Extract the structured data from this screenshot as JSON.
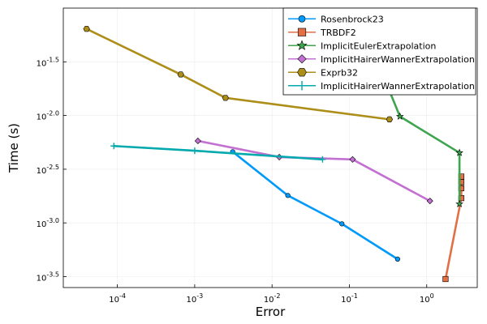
{
  "chart_data": {
    "type": "line",
    "xlabel": "Error",
    "ylabel": "Time (s)",
    "xscale": "log10",
    "yscale": "log10",
    "xlim": [
      2e-05,
      4.5
    ],
    "ylim": [
      0.00025,
      0.1
    ],
    "x_ticks": [
      {
        "value": 0.0001,
        "base": "10",
        "exp": "-4"
      },
      {
        "value": 0.001,
        "base": "10",
        "exp": "-3"
      },
      {
        "value": 0.01,
        "base": "10",
        "exp": "-2"
      },
      {
        "value": 0.1,
        "base": "10",
        "exp": "-1"
      },
      {
        "value": 1,
        "base": "10",
        "exp": "0"
      }
    ],
    "y_ticks": [
      {
        "value": 0.000316,
        "base": "10",
        "exp": "-3.5"
      },
      {
        "value": 0.001,
        "base": "10",
        "exp": "-3.0"
      },
      {
        "value": 0.00316,
        "base": "10",
        "exp": "-2.5"
      },
      {
        "value": 0.01,
        "base": "10",
        "exp": "-2.0"
      },
      {
        "value": 0.0316,
        "base": "10",
        "exp": "-1.5"
      }
    ],
    "grid": true,
    "legend_position": "top-right",
    "series": [
      {
        "name": "Rosenbrock23",
        "color": "#009AFA",
        "marker": "circle",
        "x": [
          0.0031,
          0.016,
          0.08,
          0.42
        ],
        "y": [
          0.0046,
          0.0018,
          0.00098,
          0.00046
        ]
      },
      {
        "name": "TRBDF2",
        "color": "#E26F46",
        "marker": "square",
        "x": [
          1.75,
          2.8,
          2.8,
          2.8,
          2.8
        ],
        "y": [
          0.0003,
          0.0017,
          0.0021,
          0.0024,
          0.0027
        ]
      },
      {
        "name": "ImplicitEulerExtrapolation",
        "color": "#3EA44E",
        "marker": "star",
        "x": [
          0.3,
          0.45,
          2.65,
          2.65
        ],
        "y": [
          0.02,
          0.0098,
          0.0045,
          0.0015
        ]
      },
      {
        "name": "ImplicitHairerWannerExtrapolation",
        "color": "#C270D1",
        "marker": "diamond",
        "x": [
          0.0011,
          0.0124,
          0.11,
          1.1
        ],
        "y": [
          0.0058,
          0.0041,
          0.0039,
          0.0016
        ]
      },
      {
        "name": "Exprb32",
        "color": "#AC8E18",
        "marker": "hexagon",
        "x": [
          4e-05,
          0.00066,
          0.0025,
          0.33
        ],
        "y": [
          0.064,
          0.0241,
          0.0146,
          0.0092
        ]
      },
      {
        "name": "ImplicitHairerWannerExtrapolation",
        "color": "#00A9AD",
        "marker": "plus",
        "x": [
          9e-05,
          0.001,
          0.045
        ],
        "y": [
          0.0052,
          0.0047,
          0.0039
        ]
      }
    ]
  }
}
